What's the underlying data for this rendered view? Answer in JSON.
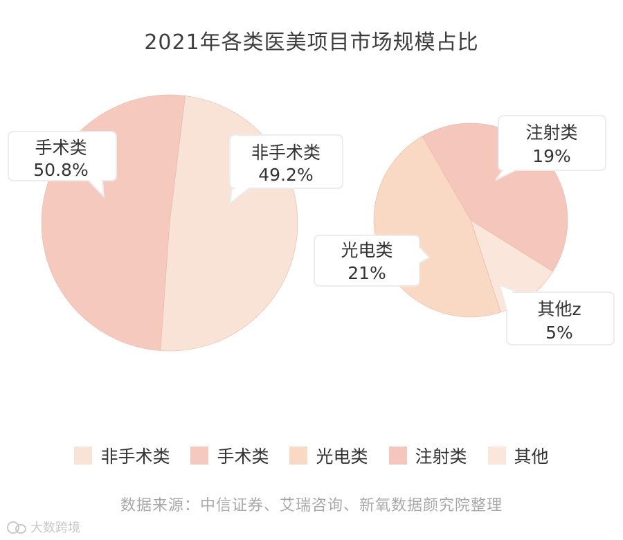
{
  "chart_data": [
    {
      "type": "pie",
      "title": "2021年各类医美项目市场规模占比",
      "slices": [
        {
          "label": "手术类",
          "value": 50.8,
          "value_label": "50.8%",
          "color": "#f5c9bd"
        },
        {
          "label": "非手术类",
          "value": 49.2,
          "value_label": "49.2%",
          "color": "#f9e3d6"
        }
      ]
    },
    {
      "type": "pie",
      "slices": [
        {
          "label": "注射类",
          "value": 19,
          "value_label": "19%",
          "color": "#f5c6bb"
        },
        {
          "label": "其他z",
          "value": 5,
          "value_label": "5%",
          "color": "#fbe6dc"
        },
        {
          "label": "光电类",
          "value": 21,
          "value_label": "21%",
          "color": "#fad9c4"
        }
      ]
    }
  ],
  "legend": [
    {
      "label": "非手术类",
      "color": "#f9e3d6"
    },
    {
      "label": "手术类",
      "color": "#f5c9bd"
    },
    {
      "label": "光电类",
      "color": "#fad9c4"
    },
    {
      "label": "注射类",
      "color": "#f5c6bb"
    },
    {
      "label": "其他",
      "color": "#fbe6dc"
    }
  ],
  "source": "数据来源：中信证券、艾瑞咨询、新氧数据颜究院整理",
  "watermark": "大数跨境"
}
